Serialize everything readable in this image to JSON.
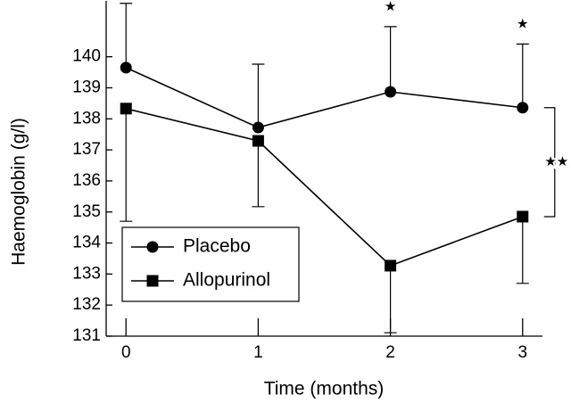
{
  "chart_data": {
    "type": "line",
    "x_label": "Time (months)",
    "y_label": "Haemoglobin (g/l)",
    "x": [
      0,
      1,
      2,
      3
    ],
    "series": [
      {
        "name": "Placebo",
        "color": "#000000",
        "marker": "circle",
        "error_direction": "up",
        "values": [
          139.65,
          137.72,
          138.87,
          138.36
        ],
        "errors": [
          2.07,
          2.04,
          2.1,
          2.05
        ]
      },
      {
        "name": "Allopurinol",
        "color": "#000000",
        "marker": "square",
        "error_direction": "down",
        "values": [
          138.33,
          137.29,
          133.27,
          134.85
        ],
        "errors": [
          3.63,
          2.12,
          2.16,
          2.15
        ]
      }
    ],
    "annotations": [
      "★",
      "★",
      "★★"
    ],
    "xlim": [
      -0.15,
      3.15
    ],
    "xticks": [
      0,
      1,
      2,
      3
    ],
    "ylim": [
      131,
      141.8
    ],
    "yticks": [
      131,
      132,
      133,
      134,
      135,
      136,
      137,
      138,
      139,
      140
    ],
    "grid": false,
    "legend": "lower left"
  }
}
